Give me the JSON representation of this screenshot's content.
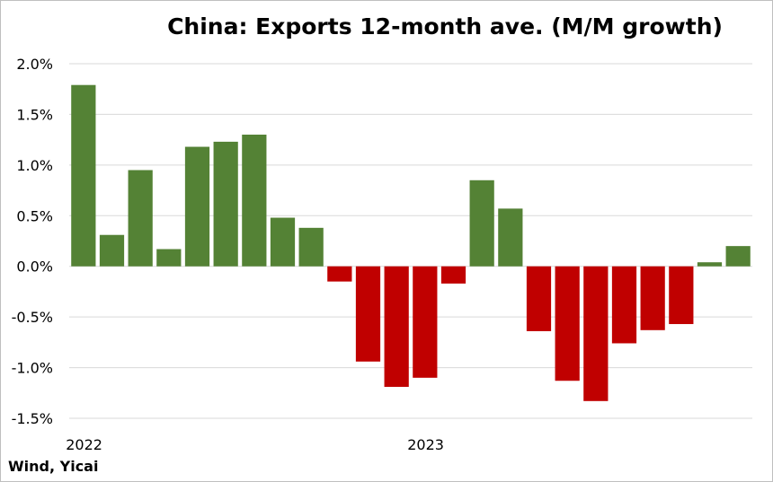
{
  "chart_data": {
    "type": "bar",
    "title": "China: Exports 12-month ave. (M/M growth)",
    "xlabel": "",
    "ylabel": "",
    "ylim": [
      -1.5,
      2.0
    ],
    "yticks": [
      2.0,
      1.5,
      1.0,
      0.5,
      0.0,
      -0.5,
      -1.0,
      -1.5
    ],
    "ytick_labels": [
      "2.0%",
      "1.5%",
      "1.0%",
      "0.5%",
      "0.0%",
      "-0.5%",
      "-1.0%",
      "-1.5%"
    ],
    "xtick_labels": [
      {
        "index": 0,
        "label": "2022"
      },
      {
        "index": 12,
        "label": "2023"
      }
    ],
    "values": [
      1.79,
      0.31,
      0.95,
      0.17,
      1.18,
      1.23,
      1.3,
      0.48,
      0.38,
      -0.15,
      -0.94,
      -1.19,
      -1.1,
      -0.17,
      0.85,
      0.57,
      -0.64,
      -1.13,
      -1.33,
      -0.76,
      -0.63,
      -0.57,
      0.04,
      0.2
    ],
    "grid": true,
    "legend": "none",
    "colors": {
      "positive": "#548235",
      "negative": "#c00000",
      "grid": "#d9d9d9"
    }
  },
  "source": "Wind, Yicai"
}
